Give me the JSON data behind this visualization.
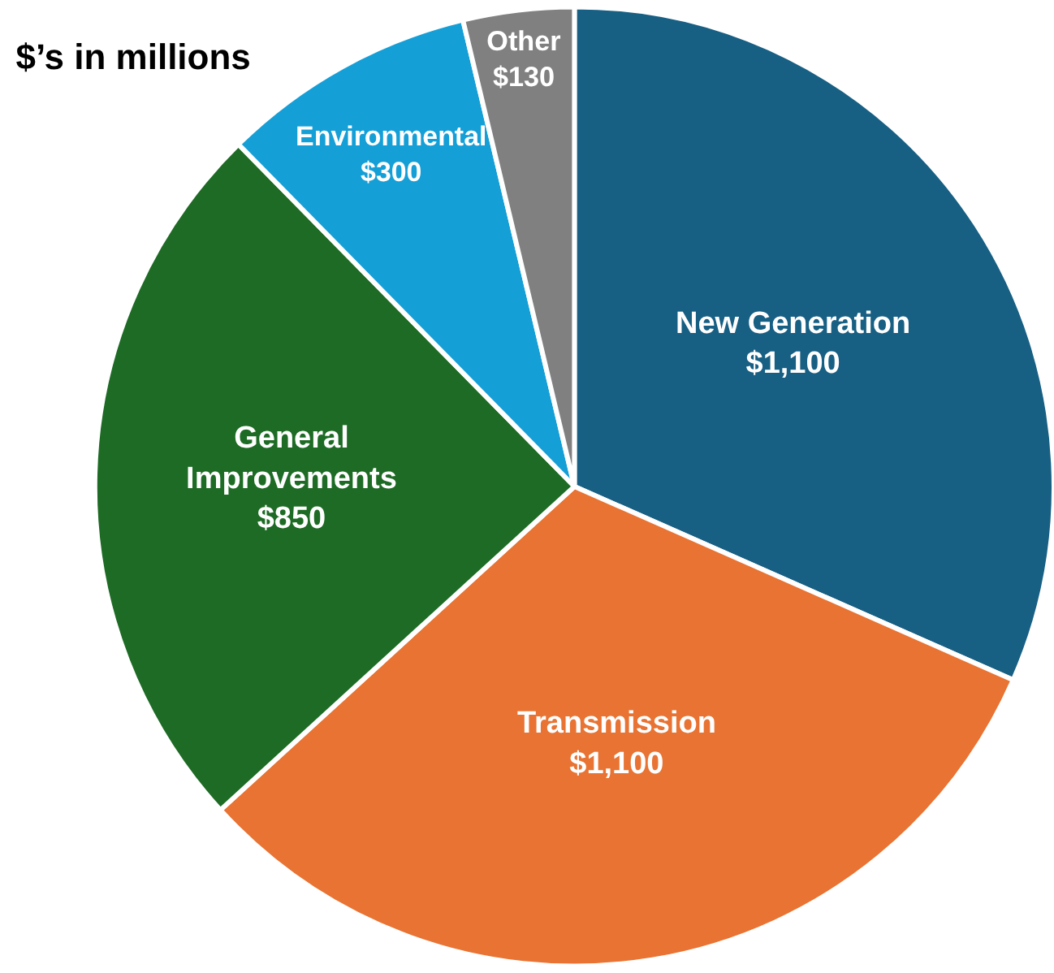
{
  "chart_data": {
    "type": "pie",
    "title": "$’s in millions",
    "categories": [
      "New Generation",
      "Transmission",
      "General Improvements",
      "Environmental",
      "Other"
    ],
    "values": [
      1100,
      1100,
      850,
      300,
      130
    ],
    "value_labels": [
      "$1,100",
      "$1,100",
      "$850",
      "$300",
      "$130"
    ],
    "colors": [
      "#175f83",
      "#e87332",
      "#1d6b24",
      "#159fd7",
      "#808080"
    ],
    "legend": false
  }
}
